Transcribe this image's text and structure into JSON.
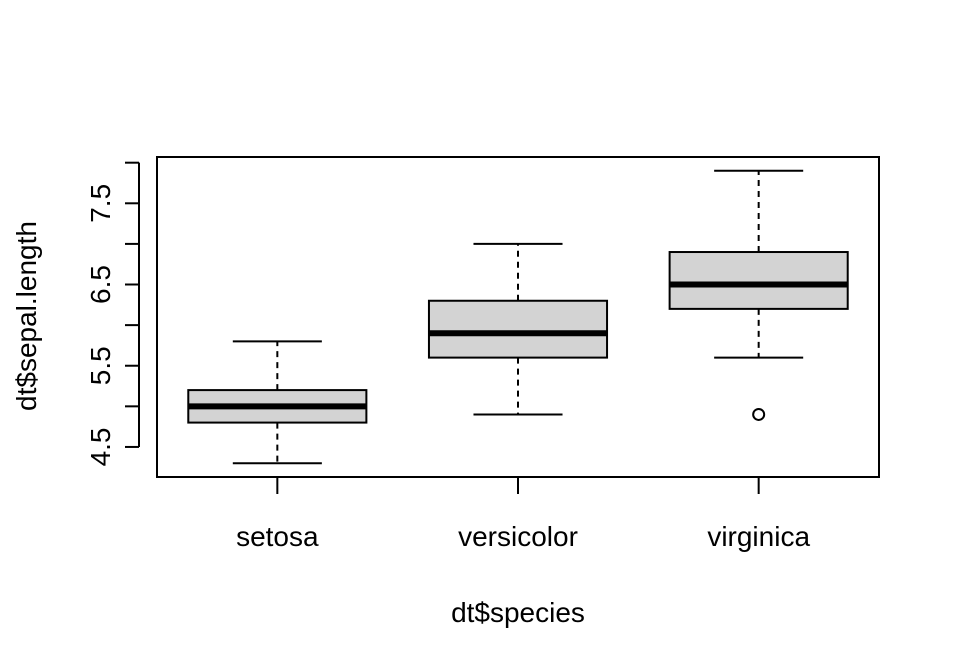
{
  "chart_data": {
    "type": "box",
    "xlabel": "dt$species",
    "ylabel": "dt$sepal.length",
    "ylim": [
      4.13,
      8.07
    ],
    "y_ticks": [
      4.5,
      5.0,
      5.5,
      6.0,
      6.5,
      7.0,
      7.5,
      8.0
    ],
    "y_tick_labels": [
      "4.5",
      "",
      "5.5",
      "",
      "6.5",
      "",
      "7.5",
      ""
    ],
    "categories": [
      "setosa",
      "versicolor",
      "virginica"
    ],
    "boxes": [
      {
        "category": "setosa",
        "whisker_low": 4.3,
        "q1": 4.8,
        "median": 5.0,
        "q3": 5.2,
        "whisker_high": 5.8,
        "outliers": []
      },
      {
        "category": "versicolor",
        "whisker_low": 4.9,
        "q1": 5.6,
        "median": 5.9,
        "q3": 6.3,
        "whisker_high": 7.0,
        "outliers": []
      },
      {
        "category": "virginica",
        "whisker_low": 5.6,
        "q1": 6.2,
        "median": 6.5,
        "q3": 6.9,
        "whisker_high": 7.9,
        "outliers": [
          4.9
        ]
      }
    ],
    "box_fill": "#d3d3d3",
    "line_color": "#000000",
    "grid": false,
    "legend": "none"
  }
}
